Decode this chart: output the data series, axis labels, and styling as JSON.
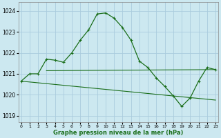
{
  "title": "Graphe pression niveau de la mer (hPa)",
  "bg_color": "#cce8f0",
  "grid_color": "#aaccdd",
  "line_color": "#1a6e1a",
  "x_ticks": [
    0,
    1,
    2,
    3,
    4,
    5,
    6,
    7,
    8,
    9,
    10,
    11,
    12,
    13,
    14,
    15,
    16,
    17,
    18,
    19,
    20,
    21,
    22,
    23
  ],
  "y_ticks": [
    1019,
    1020,
    1021,
    1022,
    1023,
    1024
  ],
  "ylim": [
    1018.7,
    1024.4
  ],
  "xlim": [
    -0.3,
    23.3
  ],
  "series1_x": [
    0,
    1,
    2,
    3,
    4,
    5,
    6,
    7,
    8,
    9,
    10,
    11,
    12,
    13,
    14,
    15,
    16,
    17,
    18,
    19,
    20,
    21,
    22,
    23
  ],
  "series1_y": [
    1020.65,
    1021.0,
    1021.0,
    1021.7,
    1021.65,
    1021.55,
    1022.0,
    1022.6,
    1023.1,
    1023.85,
    1023.9,
    1023.65,
    1023.2,
    1022.6,
    1021.6,
    1021.3,
    1020.8,
    1020.4,
    1019.95,
    1019.45,
    1019.85,
    1020.65,
    1021.3,
    1021.2
  ],
  "series2_x": [
    3,
    23
  ],
  "series2_y": [
    1021.15,
    1021.2
  ],
  "series3_x": [
    0,
    23
  ],
  "series3_y": [
    1020.65,
    1019.75
  ]
}
